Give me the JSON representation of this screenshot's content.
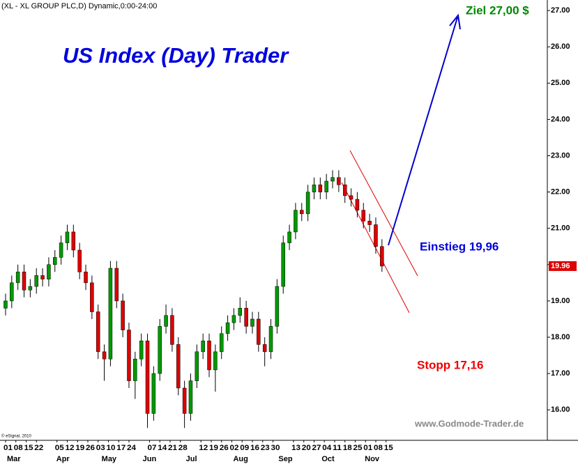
{
  "chart_data": {
    "type": "candlestick",
    "header": "(XL - XL GROUP PLC,D) Dynamic,0:00-24:00",
    "title": "US Index (Day) Trader",
    "annotations": {
      "target": "Ziel 27,00 $",
      "entry": "Einstieg 19,96",
      "stop": "Stopp 17,16",
      "website": "www.Godmode-Trader.de",
      "copyright": "© eSignal, 2010"
    },
    "up_color": "#009900",
    "down_color": "#dd0000",
    "x": [
      0,
      3,
      6,
      9,
      12,
      15,
      18,
      21,
      24,
      27,
      30,
      33,
      36,
      39,
      42,
      45,
      48,
      51,
      54,
      57,
      60,
      63,
      66,
      69,
      72,
      75,
      78,
      81,
      84,
      87,
      90,
      93,
      96,
      99,
      102,
      105,
      108,
      111,
      114,
      117,
      120,
      123,
      126,
      129,
      132,
      135,
      138,
      141,
      144,
      147,
      150,
      153,
      156,
      159,
      162,
      165,
      168,
      171,
      174,
      177,
      180,
      183
    ],
    "open": [
      18.8,
      19.0,
      19.5,
      19.8,
      19.3,
      19.4,
      19.7,
      19.6,
      20.0,
      20.2,
      20.6,
      20.9,
      20.4,
      19.8,
      19.5,
      18.7,
      17.6,
      17.4,
      19.9,
      19.0,
      18.2,
      16.8,
      17.4,
      17.9,
      15.9,
      17.0,
      18.3,
      18.6,
      17.8,
      16.6,
      15.9,
      16.8,
      17.6,
      17.9,
      17.1,
      17.6,
      18.1,
      18.4,
      18.6,
      18.8,
      18.3,
      18.5,
      17.8,
      17.6,
      18.3,
      19.4,
      20.6,
      20.9,
      21.5,
      21.4,
      22.0,
      22.2,
      22.0,
      22.3,
      22.4,
      22.2,
      21.9,
      21.8,
      21.5,
      21.2,
      21.1,
      20.5
    ],
    "high": [
      19.2,
      19.7,
      20.0,
      20.0,
      19.6,
      19.9,
      19.9,
      20.2,
      20.4,
      20.8,
      21.1,
      21.1,
      20.6,
      20.0,
      19.7,
      18.9,
      17.8,
      20.1,
      20.1,
      19.2,
      18.4,
      17.6,
      18.1,
      18.1,
      17.2,
      18.5,
      18.9,
      18.8,
      18.0,
      16.8,
      17.0,
      17.8,
      18.1,
      18.1,
      17.8,
      18.3,
      18.6,
      18.8,
      19.1,
      19.0,
      18.7,
      18.7,
      18.0,
      18.5,
      19.6,
      20.8,
      21.1,
      21.7,
      21.7,
      22.2,
      22.4,
      22.4,
      22.5,
      22.6,
      22.6,
      22.4,
      22.1,
      22.0,
      21.7,
      21.4,
      21.3,
      20.7
    ],
    "low": [
      18.6,
      18.8,
      19.3,
      19.1,
      19.1,
      19.2,
      19.4,
      19.4,
      19.8,
      20.0,
      20.4,
      20.2,
      19.6,
      19.3,
      18.5,
      17.4,
      16.8,
      17.2,
      18.8,
      18.0,
      16.6,
      16.3,
      17.2,
      15.5,
      15.7,
      16.8,
      18.1,
      17.6,
      16.4,
      15.5,
      15.7,
      16.6,
      17.4,
      16.9,
      16.5,
      17.4,
      17.9,
      18.2,
      18.4,
      18.1,
      18.1,
      17.6,
      17.2,
      17.4,
      18.1,
      19.2,
      20.4,
      20.7,
      21.2,
      21.2,
      21.8,
      21.8,
      21.8,
      22.1,
      22.0,
      21.7,
      21.6,
      21.3,
      21.0,
      20.9,
      20.3,
      19.8
    ],
    "close": [
      19.0,
      19.5,
      19.8,
      19.3,
      19.4,
      19.7,
      19.6,
      20.0,
      20.2,
      20.6,
      20.9,
      20.4,
      19.8,
      19.5,
      18.7,
      17.6,
      17.4,
      19.9,
      19.0,
      18.2,
      16.8,
      17.4,
      17.9,
      15.9,
      17.0,
      18.3,
      18.6,
      17.8,
      16.6,
      15.9,
      16.8,
      17.6,
      17.9,
      17.1,
      17.6,
      18.1,
      18.4,
      18.6,
      18.8,
      18.3,
      18.5,
      17.8,
      17.6,
      18.3,
      19.4,
      20.6,
      20.9,
      21.5,
      21.4,
      22.0,
      22.2,
      22.0,
      22.3,
      22.4,
      22.2,
      21.9,
      21.8,
      21.5,
      21.2,
      21.1,
      20.5,
      19.96
    ],
    "xlim": [
      -2.7,
      263.4
    ],
    "xticks": [
      {
        "value": 0,
        "label": "01"
      },
      {
        "value": 5,
        "label": "08"
      },
      {
        "value": 10,
        "label": "15"
      },
      {
        "value": 15,
        "label": "22"
      },
      {
        "value": 25,
        "label": "05"
      },
      {
        "value": 30,
        "label": "12"
      },
      {
        "value": 35,
        "label": "19"
      },
      {
        "value": 40,
        "label": "26"
      },
      {
        "value": 45,
        "label": "03"
      },
      {
        "value": 50,
        "label": "10"
      },
      {
        "value": 55,
        "label": "17"
      },
      {
        "value": 60,
        "label": "24"
      },
      {
        "value": 70,
        "label": "07"
      },
      {
        "value": 75,
        "label": "14"
      },
      {
        "value": 80,
        "label": "21"
      },
      {
        "value": 85,
        "label": "28"
      },
      {
        "value": 95,
        "label": "12"
      },
      {
        "value": 100,
        "label": "19"
      },
      {
        "value": 105,
        "label": "26"
      },
      {
        "value": 110,
        "label": "02"
      },
      {
        "value": 115,
        "label": "09"
      },
      {
        "value": 120,
        "label": "16"
      },
      {
        "value": 125,
        "label": "23"
      },
      {
        "value": 130,
        "label": "30"
      },
      {
        "value": 140,
        "label": "13"
      },
      {
        "value": 145,
        "label": "20"
      },
      {
        "value": 150,
        "label": "27"
      },
      {
        "value": 155,
        "label": "04"
      },
      {
        "value": 160,
        "label": "11"
      },
      {
        "value": 165,
        "label": "18"
      },
      {
        "value": 170,
        "label": "25"
      },
      {
        "value": 175,
        "label": "01"
      },
      {
        "value": 180,
        "label": "08"
      },
      {
        "value": 185,
        "label": "15"
      }
    ],
    "month_labels": [
      {
        "value": 0,
        "label": "Mar"
      },
      {
        "value": 24,
        "label": "Apr"
      },
      {
        "value": 46,
        "label": "May"
      },
      {
        "value": 66,
        "label": "Jun"
      },
      {
        "value": 87,
        "label": "Jul"
      },
      {
        "value": 110,
        "label": "Aug"
      },
      {
        "value": 132,
        "label": "Sep"
      },
      {
        "value": 153,
        "label": "Oct"
      },
      {
        "value": 174,
        "label": "Nov"
      }
    ],
    "ylim": [
      15.16,
      27.29
    ],
    "yticks": [
      {
        "value": 16,
        "label": "16.00"
      },
      {
        "value": 17,
        "label": "17.00"
      },
      {
        "value": 18,
        "label": "18.00"
      },
      {
        "value": 19,
        "label": "19.00"
      },
      {
        "value": 20,
        "label": "20.00"
      },
      {
        "value": 21,
        "label": "21.00"
      },
      {
        "value": 22,
        "label": "22.00"
      },
      {
        "value": 23,
        "label": "23.00"
      },
      {
        "value": 24,
        "label": "24.00"
      },
      {
        "value": 25,
        "label": "25.00"
      },
      {
        "value": 26,
        "label": "26.00"
      },
      {
        "value": 27,
        "label": "27.00"
      }
    ]
  }
}
